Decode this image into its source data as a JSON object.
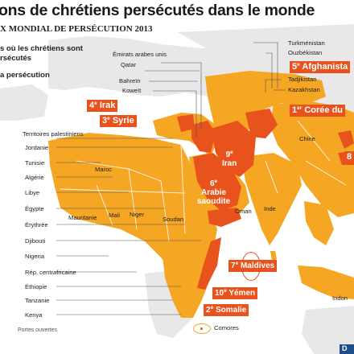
{
  "title": "ons de chrétiens persécutés dans le monde",
  "subtitle": "X MONDIAL DE PERSÉCUTION 2013",
  "legend": {
    "line1": "s où les chrétiens sont",
    "line2": "rsécutés",
    "line3": "a persécution"
  },
  "left_labels": [
    "Territoires palestiniens",
    "Jordanie",
    "Tunisie",
    "Algérie",
    "Libye",
    "Égypte",
    "Érythrée",
    "Djibouti",
    "Nigeria",
    "Rép. centrafricaine",
    "Éthiopie",
    "Tanzanie",
    "Kenya"
  ],
  "gulf_labels": [
    "Émirats arabes unis",
    "Qatar",
    "Bahreïn",
    "Koweït"
  ],
  "central_asia_labels": [
    "Turkménistan",
    "Ouzbékistan",
    "Tadjikistan",
    "Kazakhstan"
  ],
  "map_labels": {
    "maroc": "Maroc",
    "mauritanie": "Mauritanie",
    "mali": "Mali",
    "niger": "Niger",
    "soudan": "Soudan",
    "oman": "Oman",
    "inde": "Inde",
    "chine": "Chine",
    "indo": "Indon"
  },
  "ranks": {
    "afghanistan": {
      "num": "5",
      "sup": "e",
      "name": "Afghanista"
    },
    "coree": {
      "num": "1",
      "sup": "er",
      "name": "Corée du"
    },
    "irak": {
      "num": "4",
      "sup": "e",
      "name": "Irak"
    },
    "syrie": {
      "num": "3",
      "sup": "e",
      "name": "Syrie"
    },
    "iran": {
      "num": "9",
      "sup": "e",
      "name": "Iran"
    },
    "arabie": {
      "num": "6",
      "sup": "e",
      "name1": "Arabie",
      "name2": "saoudite"
    },
    "maldives": {
      "num": "7",
      "sup": "e",
      "name": "Maldives"
    },
    "yemen": {
      "num": "10",
      "sup": "e",
      "name": "Yémen"
    },
    "somalie": {
      "num": "2",
      "sup": "e",
      "name": "Somalie"
    },
    "eight": {
      "num": "8"
    }
  },
  "comores": "Comores",
  "source": "Portes ouvertes",
  "logo_text": "D",
  "colors": {
    "country_fill": "#f5a623",
    "top10_fill": "#e8521c",
    "water": "#ffffff",
    "other_land": "#e8e8e8"
  }
}
